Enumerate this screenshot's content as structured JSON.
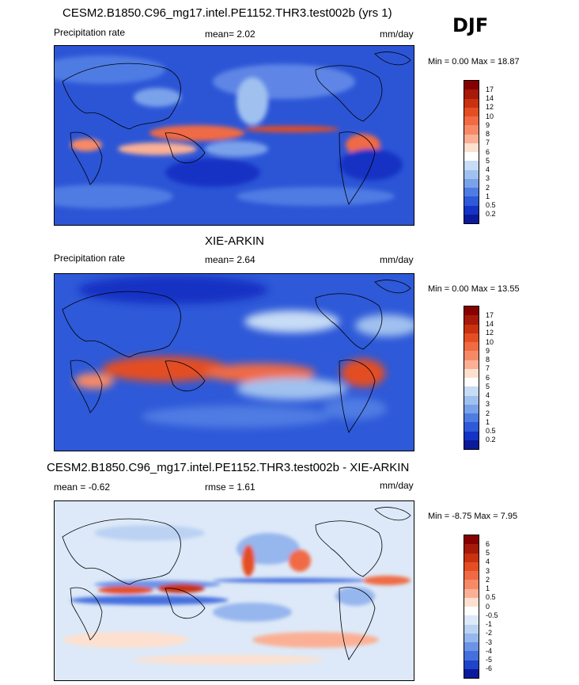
{
  "season": "DJF",
  "panels": [
    {
      "title": "CESM2.B1850.C96_mg17.intel.PE1152.THR3.test002b (yrs 1)",
      "left_label": "Precipitation rate",
      "center_label": "mean=  2.02",
      "right_label": "mm/day",
      "minmax": "Min =   0.00 Max =  18.87",
      "colorbar_ticks": [
        "17",
        "14",
        "12",
        "10",
        "9",
        "8",
        "7",
        "6",
        "5",
        "4",
        "3",
        "2",
        "1",
        "0.5",
        "0.2"
      ],
      "colorbar_colors": [
        "#870000",
        "#a51a0a",
        "#c8320f",
        "#e44e22",
        "#f06a44",
        "#f78a66",
        "#fbb095",
        "#fde0cf",
        "#ffffff",
        "#c7dcf5",
        "#a0c1ef",
        "#7aa2ea",
        "#4f7ce3",
        "#2e59d8",
        "#1533c4",
        "#0a1a9a"
      ]
    },
    {
      "title": "XIE-ARKIN",
      "left_label": "Precipitation rate",
      "center_label": "mean=  2.64",
      "right_label": "mm/day",
      "minmax": "Min =   0.00 Max =  13.55",
      "colorbar_ticks": [
        "17",
        "14",
        "12",
        "10",
        "9",
        "8",
        "7",
        "6",
        "5",
        "4",
        "3",
        "2",
        "1",
        "0.5",
        "0.2"
      ],
      "colorbar_colors": [
        "#870000",
        "#a51a0a",
        "#c8320f",
        "#e44e22",
        "#f06a44",
        "#f78a66",
        "#fbb095",
        "#fde0cf",
        "#ffffff",
        "#c7dcf5",
        "#a0c1ef",
        "#7aa2ea",
        "#4f7ce3",
        "#2e59d8",
        "#1533c4",
        "#0a1a9a"
      ]
    },
    {
      "title": "CESM2.B1850.C96_mg17.intel.PE1152.THR3.test002b - XIE-ARKIN",
      "left_label": "mean = -0.62",
      "center_label": "rmse =  1.61",
      "right_label": "mm/day",
      "minmax": "Min =  -8.75 Max =   7.95",
      "colorbar_ticks": [
        "6",
        "5",
        "4",
        "3",
        "2",
        "1",
        "0.5",
        "0",
        "-0.5",
        "-1",
        "-2",
        "-3",
        "-4",
        "-5",
        "-6"
      ],
      "colorbar_colors": [
        "#870000",
        "#a51a0a",
        "#c8320f",
        "#e44e22",
        "#f06a44",
        "#f78a66",
        "#fbb095",
        "#fde0cf",
        "#ffffff",
        "#dde9f8",
        "#bcd2f3",
        "#96b6ee",
        "#6d93e7",
        "#4470de",
        "#1e45c8",
        "#0a1a9a"
      ]
    }
  ]
}
